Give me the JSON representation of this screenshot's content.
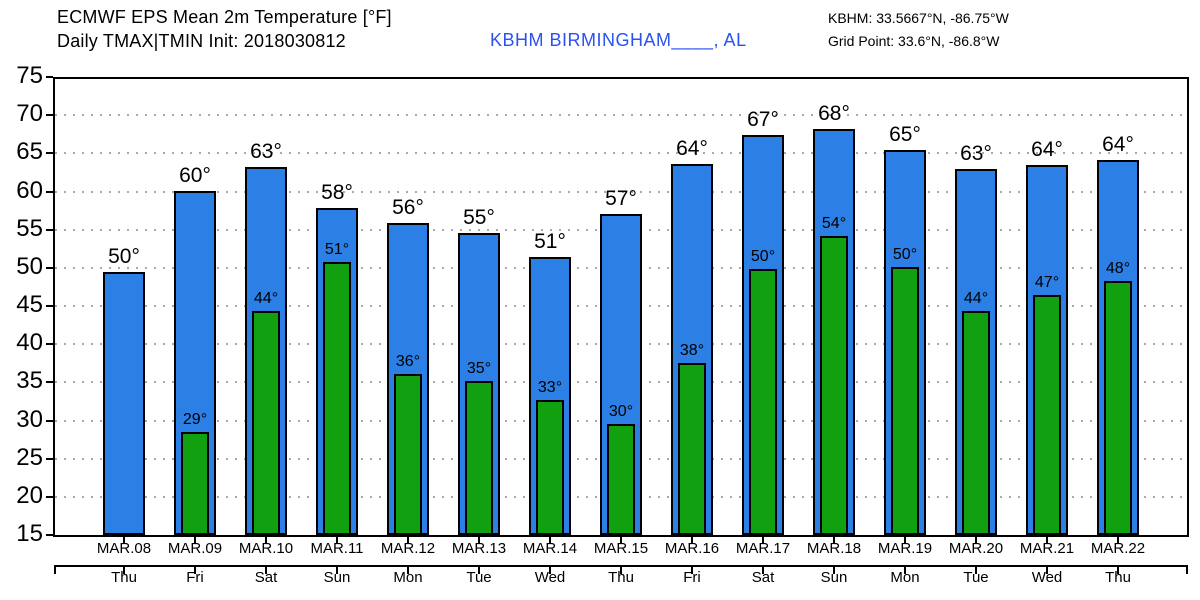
{
  "header": {
    "title_line1": "ECMWF EPS Mean 2m Temperature [°F]",
    "title_line2": "Daily TMAX|TMIN Init: 2018030812",
    "station": "KBHM BIRMINGHAM____, AL",
    "coords_line1": "KBHM: 33.5667°N, -86.75°W",
    "coords_line2": "Grid Point: 33.6°N, -86.8°W"
  },
  "colors": {
    "tmax_bar": "#2c7fe4",
    "tmin_bar": "#10a010",
    "station_text": "#2b52ef",
    "grid": "#a9a9a9"
  },
  "chart_data": {
    "type": "bar",
    "title": "ECMWF EPS Mean 2m Temperature [°F]",
    "subtitle": "Daily TMAX|TMIN Init: 2018030812",
    "station": "KBHM BIRMINGHAM____, AL",
    "ylim": [
      15,
      75
    ],
    "yticks": [
      75,
      70,
      65,
      60,
      55,
      50,
      45,
      40,
      35,
      30,
      25,
      20,
      15
    ],
    "gridlines": [
      70,
      65,
      60,
      55,
      50,
      45,
      40,
      35,
      30,
      25,
      20
    ],
    "grid_style": "dotted",
    "legend_position": "none",
    "categories": [
      "MAR.08",
      "MAR.09",
      "MAR.10",
      "MAR.11",
      "MAR.12",
      "MAR.13",
      "MAR.14",
      "MAR.15",
      "MAR.16",
      "MAR.17",
      "MAR.18",
      "MAR.19",
      "MAR.20",
      "MAR.21",
      "MAR.22"
    ],
    "weekdays": [
      "Thu",
      "Fri",
      "Sat",
      "Sun",
      "Mon",
      "Tue",
      "Wed",
      "Thu",
      "Fri",
      "Sat",
      "Sun",
      "Mon",
      "Tue",
      "Wed",
      "Thu"
    ],
    "series": [
      {
        "name": "TMAX",
        "color": "#2c7fe4",
        "values": [
          49.5,
          60.0,
          63.2,
          57.8,
          55.9,
          54.6,
          51.4,
          57.0,
          63.6,
          67.4,
          68.2,
          65.4,
          62.9,
          63.5,
          64.1
        ],
        "labels": [
          "50°",
          "60°",
          "63°",
          "58°",
          "56°",
          "55°",
          "51°",
          "57°",
          "64°",
          "67°",
          "68°",
          "65°",
          "63°",
          "64°",
          "64°"
        ]
      },
      {
        "name": "TMIN",
        "color": "#10a010",
        "values": [
          null,
          28.5,
          44.3,
          50.8,
          36.1,
          35.2,
          32.7,
          29.6,
          37.5,
          49.8,
          54.2,
          50.1,
          44.3,
          46.5,
          48.3
        ],
        "labels": [
          null,
          "29°",
          "44°",
          "51°",
          "36°",
          "35°",
          "33°",
          "30°",
          "38°",
          "50°",
          "54°",
          "50°",
          "44°",
          "47°",
          "48°"
        ]
      }
    ]
  }
}
